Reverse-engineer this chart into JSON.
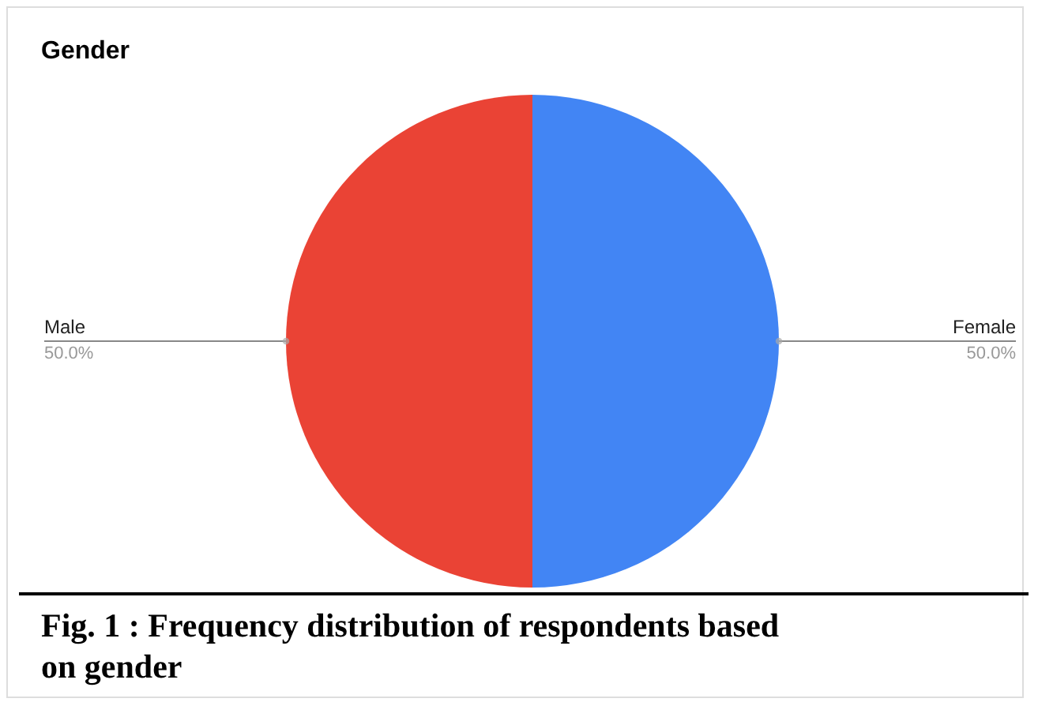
{
  "chart_data": {
    "type": "pie",
    "title": "Gender",
    "categories": [
      "Female",
      "Male"
    ],
    "values": [
      50,
      50
    ],
    "colors": [
      "#4285f4",
      "#ea4335"
    ],
    "value_labels": [
      "50.0%",
      "50.0%"
    ],
    "annotations": [
      "Fig. 1 :   Frequency distribution of respondents based on gender"
    ]
  }
}
